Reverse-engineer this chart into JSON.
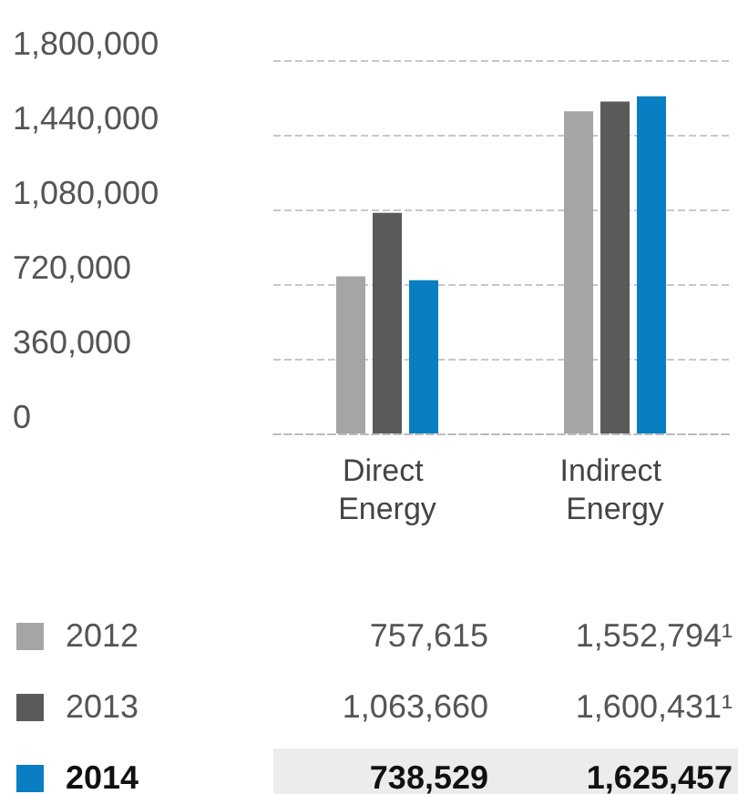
{
  "chart_data": {
    "type": "bar",
    "categories": [
      "Direct Energy",
      "Indirect Energy"
    ],
    "series": [
      {
        "name": "2012",
        "color": "#a5a5a5",
        "values": [
          757615,
          1552794
        ],
        "value_labels": [
          "757,615",
          "1,552,794¹"
        ]
      },
      {
        "name": "2013",
        "color": "#5a5a5a",
        "values": [
          1063660,
          1600431
        ],
        "value_labels": [
          "1,063,660",
          "1,600,431¹"
        ]
      },
      {
        "name": "2014",
        "color": "#0a7ec2",
        "values": [
          738529,
          1625457
        ],
        "value_labels": [
          "738,529",
          "1,625,457"
        ]
      }
    ],
    "ylim": [
      0,
      1800000
    ],
    "yticks": [
      {
        "value": 0,
        "label": "0"
      },
      {
        "value": 360000,
        "label": "360,000"
      },
      {
        "value": 720000,
        "label": "720,000"
      },
      {
        "value": 1080000,
        "label": "1,080,000"
      },
      {
        "value": 1440000,
        "label": "1,440,000"
      },
      {
        "value": 1800000,
        "label": "1,800,000"
      }
    ],
    "grid": "y",
    "legend": "bottom"
  }
}
